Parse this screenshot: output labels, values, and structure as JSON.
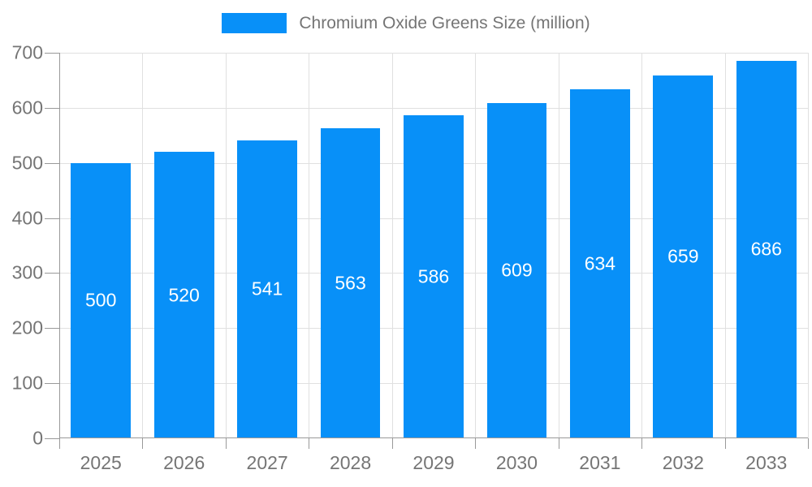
{
  "legend": {
    "label": "Chromium Oxide Greens Size (million)"
  },
  "colors": {
    "bar": "#0890f8",
    "grid": "#e0e0e0",
    "axis": "#999999",
    "tick_text": "#757575",
    "value_text": "#ffffff",
    "background": "#ffffff"
  },
  "chart_data": {
    "type": "bar",
    "title": "Chromium Oxide Greens Size (million)",
    "categories": [
      "2025",
      "2026",
      "2027",
      "2028",
      "2029",
      "2030",
      "2031",
      "2032",
      "2033"
    ],
    "values": [
      500,
      520,
      541,
      563,
      586,
      609,
      634,
      659,
      686
    ],
    "series": [
      {
        "name": "Chromium Oxide Greens Size (million)",
        "values": [
          500,
          520,
          541,
          563,
          586,
          609,
          634,
          659,
          686
        ]
      }
    ],
    "xlabel": "",
    "ylabel": "",
    "ylim": [
      0,
      700
    ],
    "ytick_interval": 100,
    "ytick_labels": [
      "0",
      "100",
      "200",
      "300",
      "400",
      "500",
      "600",
      "700"
    ],
    "grid": true,
    "vertical_gridlines": true,
    "legend_position": "top-center",
    "value_labels": "white, centered inside bars",
    "bar_width_fraction": 0.72
  }
}
